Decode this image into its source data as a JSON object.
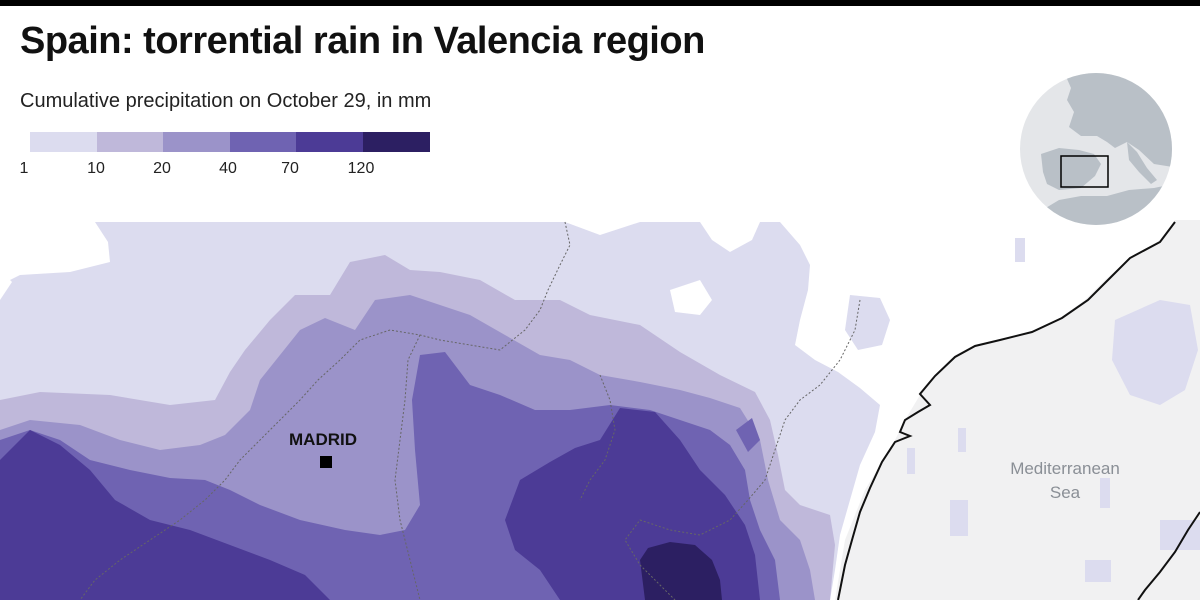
{
  "title": "Spain: torrential rain in Valencia region",
  "subtitle": "Cumulative precipitation on October 29, in mm",
  "legend": {
    "classes": [
      {
        "from": 1,
        "to": 10,
        "color": "#dcdcef"
      },
      {
        "from": 10,
        "to": 20,
        "color": "#bfb8da"
      },
      {
        "from": 20,
        "to": 40,
        "color": "#9b93c9"
      },
      {
        "from": 40,
        "to": 70,
        "color": "#6f63b2"
      },
      {
        "from": 70,
        "to": 120,
        "color": "#4c3b96"
      },
      {
        "from": 120,
        "to": null,
        "color": "#2c1f62"
      }
    ],
    "tick_labels": [
      "1",
      "10",
      "20",
      "40",
      "70",
      "120"
    ]
  },
  "map": {
    "city": "MADRID",
    "sea_label_line1": "Mediterranean",
    "sea_label_line2": "Sea",
    "colors": {
      "sea": "#f1f1f2",
      "land_no_rain": "#ffffff",
      "coastline": "#111111",
      "border": "#666666"
    }
  },
  "locator": {
    "ocean_color": "#e4e6e9",
    "land_color": "#b9c0c7",
    "highlight_box_color": "#000000"
  }
}
